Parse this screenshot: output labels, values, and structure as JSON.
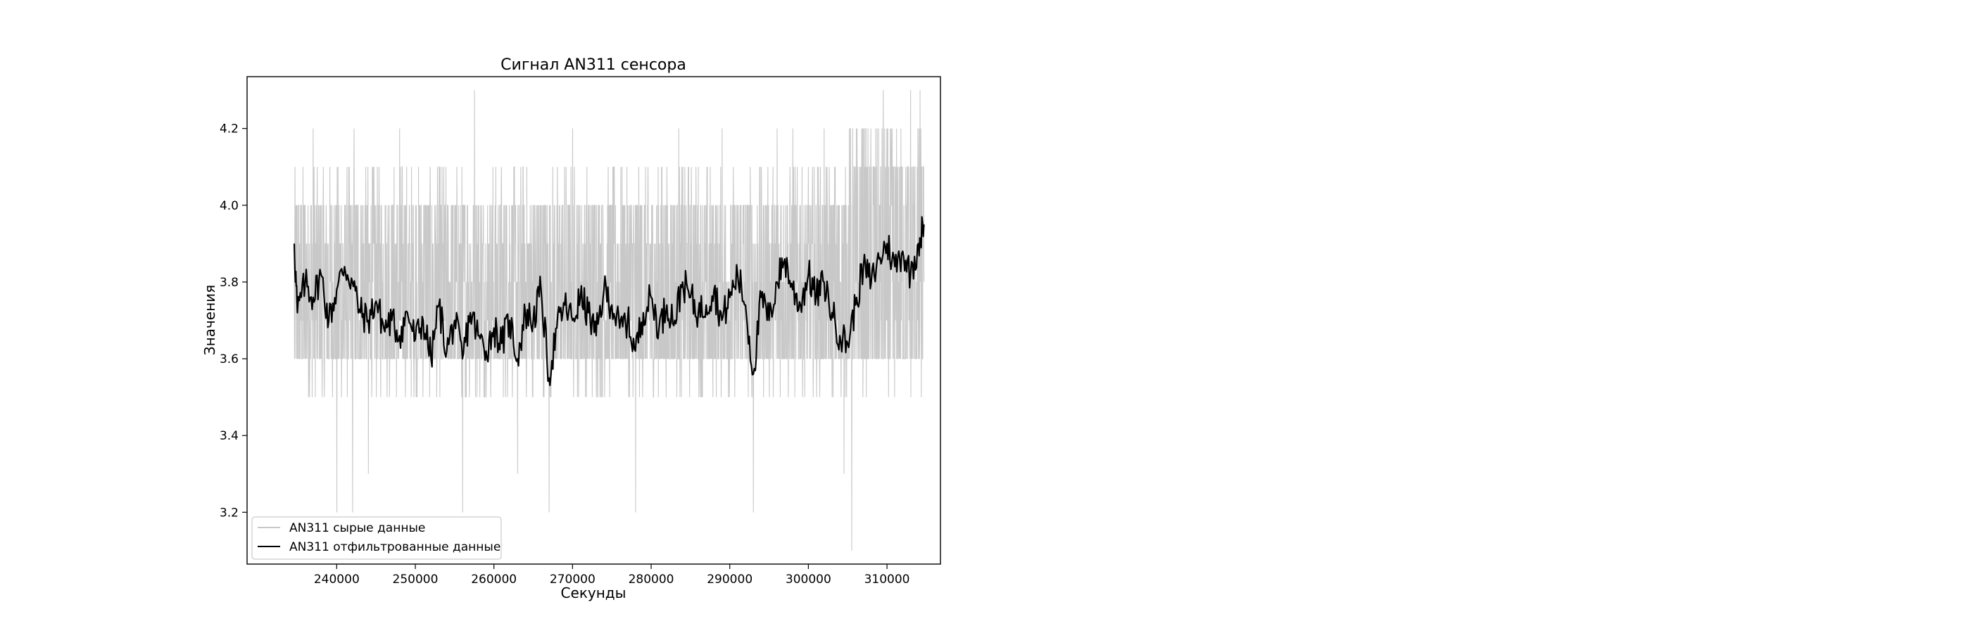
{
  "chart_data": {
    "type": "line",
    "title": "Сигнал AN311 сенсора",
    "xlabel": "Секунды",
    "ylabel": "Значения",
    "xlim": [
      228600,
      316800
    ],
    "ylim": [
      3.065,
      4.335
    ],
    "xticks": [
      240000,
      250000,
      260000,
      270000,
      280000,
      290000,
      300000,
      310000
    ],
    "xtick_labels": [
      "240000",
      "250000",
      "260000",
      "270000",
      "280000",
      "290000",
      "300000",
      "310000"
    ],
    "yticks": [
      3.2,
      3.4,
      3.6,
      3.8,
      4.0,
      4.2
    ],
    "ytick_labels": [
      "3.2",
      "3.4",
      "3.6",
      "3.8",
      "4.0",
      "4.2"
    ],
    "grid": false,
    "legend_position": "lower-left",
    "series": [
      {
        "name": "AN311 сырые данные",
        "color": "#c8c8c8",
        "kind": "raw",
        "x_range": [
          234600,
          314700
        ],
        "base_values": [
          3.6,
          4.0,
          3.6,
          4.1,
          3.7,
          4.0,
          3.6,
          4.1,
          3.5,
          4.0
        ],
        "spikes": [
          {
            "x": 237000,
            "y": 4.2
          },
          {
            "x": 240000,
            "y": 3.2
          },
          {
            "x": 242000,
            "y": 3.2
          },
          {
            "x": 242200,
            "y": 4.2
          },
          {
            "x": 244000,
            "y": 3.3
          },
          {
            "x": 248000,
            "y": 4.2
          },
          {
            "x": 256000,
            "y": 3.2
          },
          {
            "x": 257500,
            "y": 4.3
          },
          {
            "x": 263000,
            "y": 3.3
          },
          {
            "x": 267000,
            "y": 3.2
          },
          {
            "x": 270000,
            "y": 4.2
          },
          {
            "x": 278000,
            "y": 3.2
          },
          {
            "x": 283500,
            "y": 4.2
          },
          {
            "x": 289000,
            "y": 4.2
          },
          {
            "x": 293000,
            "y": 3.2
          },
          {
            "x": 296000,
            "y": 4.2
          },
          {
            "x": 298000,
            "y": 4.2
          },
          {
            "x": 302000,
            "y": 4.2
          },
          {
            "x": 304500,
            "y": 3.3
          },
          {
            "x": 305500,
            "y": 3.1
          },
          {
            "x": 307000,
            "y": 4.2
          },
          {
            "x": 309500,
            "y": 4.3
          },
          {
            "x": 313000,
            "y": 4.3
          },
          {
            "x": 314200,
            "y": 4.3
          }
        ]
      },
      {
        "name": "AN311 отфильтрованные данные",
        "color": "#000000",
        "kind": "filtered",
        "x": [
          234600,
          235000,
          236000,
          237000,
          238000,
          239000,
          240000,
          241000,
          242000,
          243000,
          244000,
          245000,
          246000,
          247000,
          248000,
          249000,
          250000,
          251000,
          252000,
          253000,
          254000,
          255000,
          256000,
          257000,
          258000,
          259000,
          260000,
          261000,
          262000,
          263000,
          264000,
          265000,
          266000,
          267000,
          268000,
          269000,
          270000,
          271000,
          272000,
          273000,
          274000,
          275000,
          276000,
          277000,
          278000,
          279000,
          280000,
          281000,
          282000,
          283000,
          284000,
          285000,
          286000,
          287000,
          288000,
          289000,
          290000,
          291000,
          292000,
          293000,
          294000,
          295000,
          296000,
          297000,
          298000,
          299000,
          300000,
          301000,
          302000,
          303000,
          304000,
          305000,
          306000,
          307000,
          308000,
          309000,
          310000,
          311000,
          312000,
          313000,
          314000,
          314700
        ],
        "y": [
          3.9,
          3.72,
          3.8,
          3.76,
          3.82,
          3.7,
          3.78,
          3.84,
          3.8,
          3.72,
          3.7,
          3.75,
          3.68,
          3.7,
          3.66,
          3.72,
          3.65,
          3.7,
          3.6,
          3.74,
          3.62,
          3.7,
          3.6,
          3.72,
          3.66,
          3.62,
          3.68,
          3.64,
          3.7,
          3.6,
          3.72,
          3.7,
          3.78,
          3.55,
          3.68,
          3.74,
          3.7,
          3.76,
          3.72,
          3.66,
          3.78,
          3.74,
          3.68,
          3.7,
          3.62,
          3.72,
          3.76,
          3.68,
          3.74,
          3.7,
          3.8,
          3.76,
          3.72,
          3.74,
          3.78,
          3.7,
          3.76,
          3.82,
          3.74,
          3.56,
          3.76,
          3.7,
          3.8,
          3.86,
          3.78,
          3.74,
          3.82,
          3.76,
          3.8,
          3.72,
          3.66,
          3.64,
          3.74,
          3.84,
          3.8,
          3.86,
          3.9,
          3.84,
          3.88,
          3.82,
          3.9,
          3.95
        ]
      }
    ]
  }
}
